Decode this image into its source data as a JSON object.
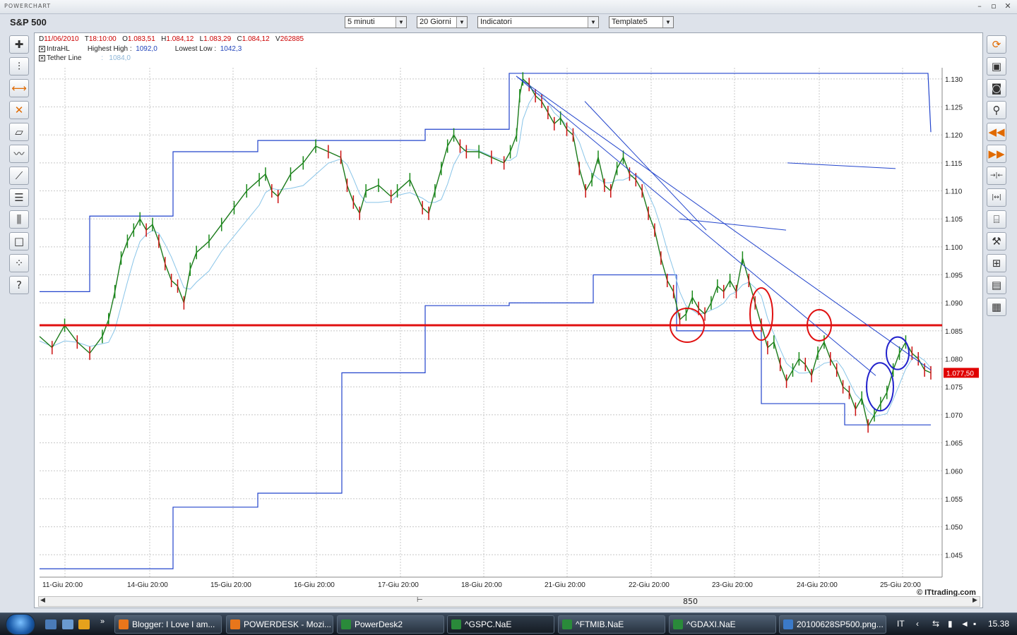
{
  "app": {
    "title": "POWERCHART"
  },
  "header": {
    "symbol": "S&P 500",
    "timeframe": "5 minuti",
    "period": "20 Giorni",
    "indicators": "Indicatori",
    "template": "Template5"
  },
  "info": {
    "d_label": "D",
    "date": "11/06/2010",
    "t_label": "T",
    "time": "18:10:00",
    "o_label": "O",
    "open": "1.083,51",
    "h_label": "H",
    "high": "1.084,12",
    "l_label": "L",
    "low": "1.083,29",
    "c_label": "C",
    "close": "1.084,12",
    "v_label": "V",
    "volume": "262885",
    "intrahl_label": "IntraHL",
    "highest_high_label": "Highest High :",
    "highest_high": "1092,0",
    "lowest_low_label": "Lowest Low :",
    "lowest_low": "1042,3",
    "tether_label": "Tether Line",
    "tether_sep": ":",
    "tether_value": "1084,0"
  },
  "chart_data": {
    "type": "line",
    "x_ticks": [
      "11-Giu 20:00",
      "14-Giu 20:00",
      "15-Giu 20:00",
      "16-Giu 20:00",
      "17-Giu 20:00",
      "18-Giu 20:00",
      "21-Giu 20:00",
      "22-Giu 20:00",
      "23-Giu 20:00",
      "24-Giu 20:00",
      "25-Giu 20:00"
    ],
    "y_ticks": [
      "1.130",
      "1.125",
      "1.120",
      "1.115",
      "1.110",
      "1.105",
      "1.100",
      "1.095",
      "1.090",
      "1.085",
      "1.080",
      "1.075",
      "1.070",
      "1.065",
      "1.060",
      "1.055",
      "1.050",
      "1.045"
    ],
    "ylim": [
      1041,
      1132
    ],
    "last_price_label": "1.077,50",
    "last_price": 1077.5,
    "support_level": 1086,
    "watermark": "© ITtrading.com",
    "scroll_value": "850",
    "price_path": [
      [
        0,
        1084
      ],
      [
        2,
        1082
      ],
      [
        4,
        1086
      ],
      [
        6,
        1083
      ],
      [
        8,
        1081
      ],
      [
        10,
        1084
      ],
      [
        11,
        1087
      ],
      [
        12,
        1092
      ],
      [
        13,
        1098
      ],
      [
        14,
        1101
      ],
      [
        15,
        1103
      ],
      [
        16,
        1105
      ],
      [
        17,
        1103
      ],
      [
        18,
        1104
      ],
      [
        19,
        1101
      ],
      [
        20,
        1097
      ],
      [
        21,
        1094
      ],
      [
        22,
        1093
      ],
      [
        23,
        1090
      ],
      [
        24,
        1096
      ],
      [
        25,
        1099
      ],
      [
        27,
        1101
      ],
      [
        29,
        1104
      ],
      [
        31,
        1107
      ],
      [
        33,
        1110
      ],
      [
        35,
        1112
      ],
      [
        36,
        1113
      ],
      [
        37,
        1110
      ],
      [
        38,
        1109
      ],
      [
        40,
        1113
      ],
      [
        42,
        1115
      ],
      [
        44,
        1118
      ],
      [
        46,
        1117
      ],
      [
        48,
        1116
      ],
      [
        49,
        1111
      ],
      [
        50,
        1108
      ],
      [
        51,
        1106
      ],
      [
        52,
        1110
      ],
      [
        54,
        1111
      ],
      [
        56,
        1109
      ],
      [
        57,
        1110
      ],
      [
        59,
        1112
      ],
      [
        61,
        1107
      ],
      [
        62,
        1106
      ],
      [
        63,
        1110
      ],
      [
        64,
        1114
      ],
      [
        65,
        1118
      ],
      [
        66,
        1120
      ],
      [
        67,
        1118
      ],
      [
        68,
        1117
      ],
      [
        70,
        1117
      ],
      [
        72,
        1116
      ],
      [
        74,
        1115
      ],
      [
        75,
        1117
      ],
      [
        76,
        1120
      ],
      [
        76.5,
        1127
      ],
      [
        77,
        1130
      ],
      [
        78,
        1129
      ],
      [
        79,
        1127
      ],
      [
        80,
        1126
      ],
      [
        81,
        1124
      ],
      [
        82,
        1122
      ],
      [
        83,
        1123
      ],
      [
        84,
        1121
      ],
      [
        85,
        1120
      ],
      [
        86,
        1114
      ],
      [
        87,
        1110
      ],
      [
        88,
        1112
      ],
      [
        89,
        1116
      ],
      [
        90,
        1111
      ],
      [
        91,
        1110
      ],
      [
        92,
        1114
      ],
      [
        93,
        1116
      ],
      [
        94,
        1113
      ],
      [
        95,
        1112
      ],
      [
        96,
        1110
      ],
      [
        97,
        1106
      ],
      [
        98,
        1103
      ],
      [
        99,
        1098
      ],
      [
        100,
        1094
      ],
      [
        101,
        1092
      ],
      [
        102,
        1087
      ],
      [
        103,
        1088
      ],
      [
        104,
        1091
      ],
      [
        105,
        1089
      ],
      [
        106,
        1088
      ],
      [
        107,
        1090
      ],
      [
        108,
        1093
      ],
      [
        109,
        1092
      ],
      [
        110,
        1094
      ],
      [
        111,
        1092
      ],
      [
        112,
        1098
      ],
      [
        113,
        1094
      ],
      [
        114,
        1090
      ],
      [
        115,
        1086
      ],
      [
        116,
        1082
      ],
      [
        117,
        1083
      ],
      [
        118,
        1079
      ],
      [
        119,
        1076
      ],
      [
        120,
        1078
      ],
      [
        121,
        1080
      ],
      [
        122,
        1079
      ],
      [
        123,
        1077
      ],
      [
        124,
        1081
      ],
      [
        125,
        1083
      ],
      [
        126,
        1080
      ],
      [
        127,
        1078
      ],
      [
        128,
        1075
      ],
      [
        129,
        1074
      ],
      [
        130,
        1071
      ],
      [
        131,
        1073
      ],
      [
        132,
        1068
      ],
      [
        133,
        1070
      ],
      [
        134,
        1072
      ],
      [
        135,
        1074
      ],
      [
        136,
        1078
      ],
      [
        137,
        1081
      ],
      [
        138,
        1083
      ],
      [
        139,
        1081
      ],
      [
        140,
        1080
      ],
      [
        141,
        1078
      ],
      [
        142,
        1077.5
      ]
    ],
    "price_path_x_max": 142
  },
  "toolbar_left": [
    {
      "name": "crosshair-icon",
      "glyph": "✚"
    },
    {
      "name": "bars-icon",
      "glyph": "⫶"
    },
    {
      "name": "resize-horizontal-icon",
      "glyph": "⟷"
    },
    {
      "name": "delete-icon",
      "glyph": "✕"
    },
    {
      "name": "eraser-icon",
      "glyph": "▱"
    },
    {
      "name": "line-chart-icon",
      "glyph": "〰"
    },
    {
      "name": "trendline-icon",
      "glyph": "⟋"
    },
    {
      "name": "list-lines-icon",
      "glyph": "☰"
    },
    {
      "name": "candles-icon",
      "glyph": "⫼"
    },
    {
      "name": "rectangle-icon",
      "glyph": "□"
    },
    {
      "name": "scatter-icon",
      "glyph": "⁘"
    },
    {
      "name": "help-icon",
      "glyph": "?"
    }
  ],
  "toolbar_right": [
    {
      "name": "refresh-icon",
      "glyph": "⟳"
    },
    {
      "name": "save-icon",
      "glyph": "▣"
    },
    {
      "name": "camera-icon",
      "glyph": "◙"
    },
    {
      "name": "zoom-icon",
      "glyph": "⚲"
    },
    {
      "name": "rewind-icon",
      "glyph": "◀◀"
    },
    {
      "name": "forward-icon",
      "glyph": "▶▶"
    },
    {
      "name": "compress-icon",
      "glyph": "→|←"
    },
    {
      "name": "expand-icon",
      "glyph": "|↔|"
    },
    {
      "name": "stairs-icon",
      "glyph": "⌸"
    },
    {
      "name": "wrench-icon",
      "glyph": "⚒"
    },
    {
      "name": "grid-icon",
      "glyph": "⊞"
    },
    {
      "name": "table-icon",
      "glyph": "▤"
    },
    {
      "name": "document-icon",
      "glyph": "▦"
    }
  ],
  "taskbar": {
    "items": [
      {
        "label": "Blogger: I Love I am...",
        "color": "#e8761b"
      },
      {
        "label": "POWERDESK - Mozi...",
        "color": "#e8761b"
      },
      {
        "label": "PowerDesk2",
        "color": "#2a8a3a"
      },
      {
        "label": "^GSPC.NaE",
        "color": "#2a8a3a"
      },
      {
        "label": "^FTMIB.NaE",
        "color": "#2a8a3a"
      },
      {
        "label": "^GDAXI.NaE",
        "color": "#2a8a3a"
      },
      {
        "label": "20100628SP500.png...",
        "color": "#3b7ac8"
      }
    ],
    "lang": "IT",
    "clock": "15.38"
  }
}
